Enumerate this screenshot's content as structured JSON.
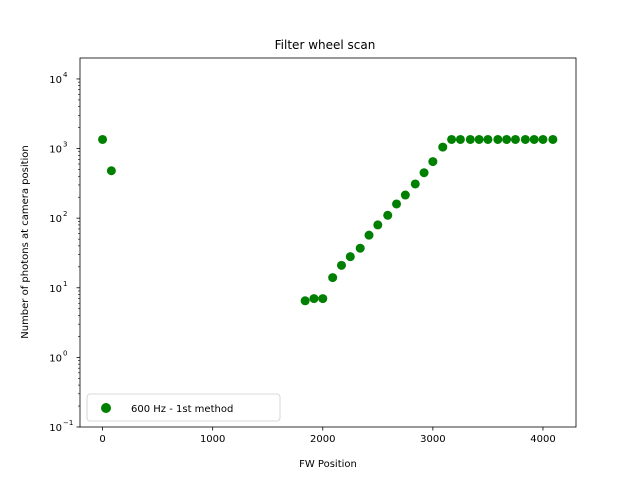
{
  "chart_data": {
    "type": "scatter",
    "title": "Filter wheel scan",
    "xlabel": "FW Position",
    "ylabel": "Number of photons at camera position",
    "xlim": [
      -205,
      4300
    ],
    "ylim": [
      0.1,
      20000
    ],
    "yscale": "log",
    "x_ticks": [
      0,
      1000,
      2000,
      3000,
      4000
    ],
    "x_tick_labels": [
      "0",
      "1000",
      "2000",
      "3000",
      "4000"
    ],
    "y_ticks": [
      0.1,
      1,
      10,
      100,
      1000,
      10000
    ],
    "y_tick_bases": [
      "10",
      "10",
      "10",
      "10",
      "10",
      "10"
    ],
    "y_tick_exponents": [
      "−1",
      "0",
      "1",
      "2",
      "3",
      "4"
    ],
    "grid": false,
    "legend_position": "lower-left",
    "series": [
      {
        "name": "600 Hz - 1st method",
        "color": "#008000",
        "marker": "circle",
        "x": [
          0,
          80,
          1840,
          1920,
          2000,
          2090,
          2170,
          2250,
          2340,
          2420,
          2500,
          2590,
          2670,
          2750,
          2840,
          2920,
          3000,
          3090,
          3170,
          3250,
          3340,
          3420,
          3500,
          3590,
          3670,
          3750,
          3840,
          3920,
          4000,
          4090
        ],
        "y": [
          1350,
          480,
          6.5,
          7.0,
          7.0,
          14,
          21,
          28,
          37,
          57,
          80,
          110,
          160,
          215,
          310,
          450,
          650,
          1050,
          1350,
          1350,
          1350,
          1350,
          1350,
          1350,
          1350,
          1350,
          1350,
          1350,
          1350,
          1350
        ]
      }
    ]
  }
}
